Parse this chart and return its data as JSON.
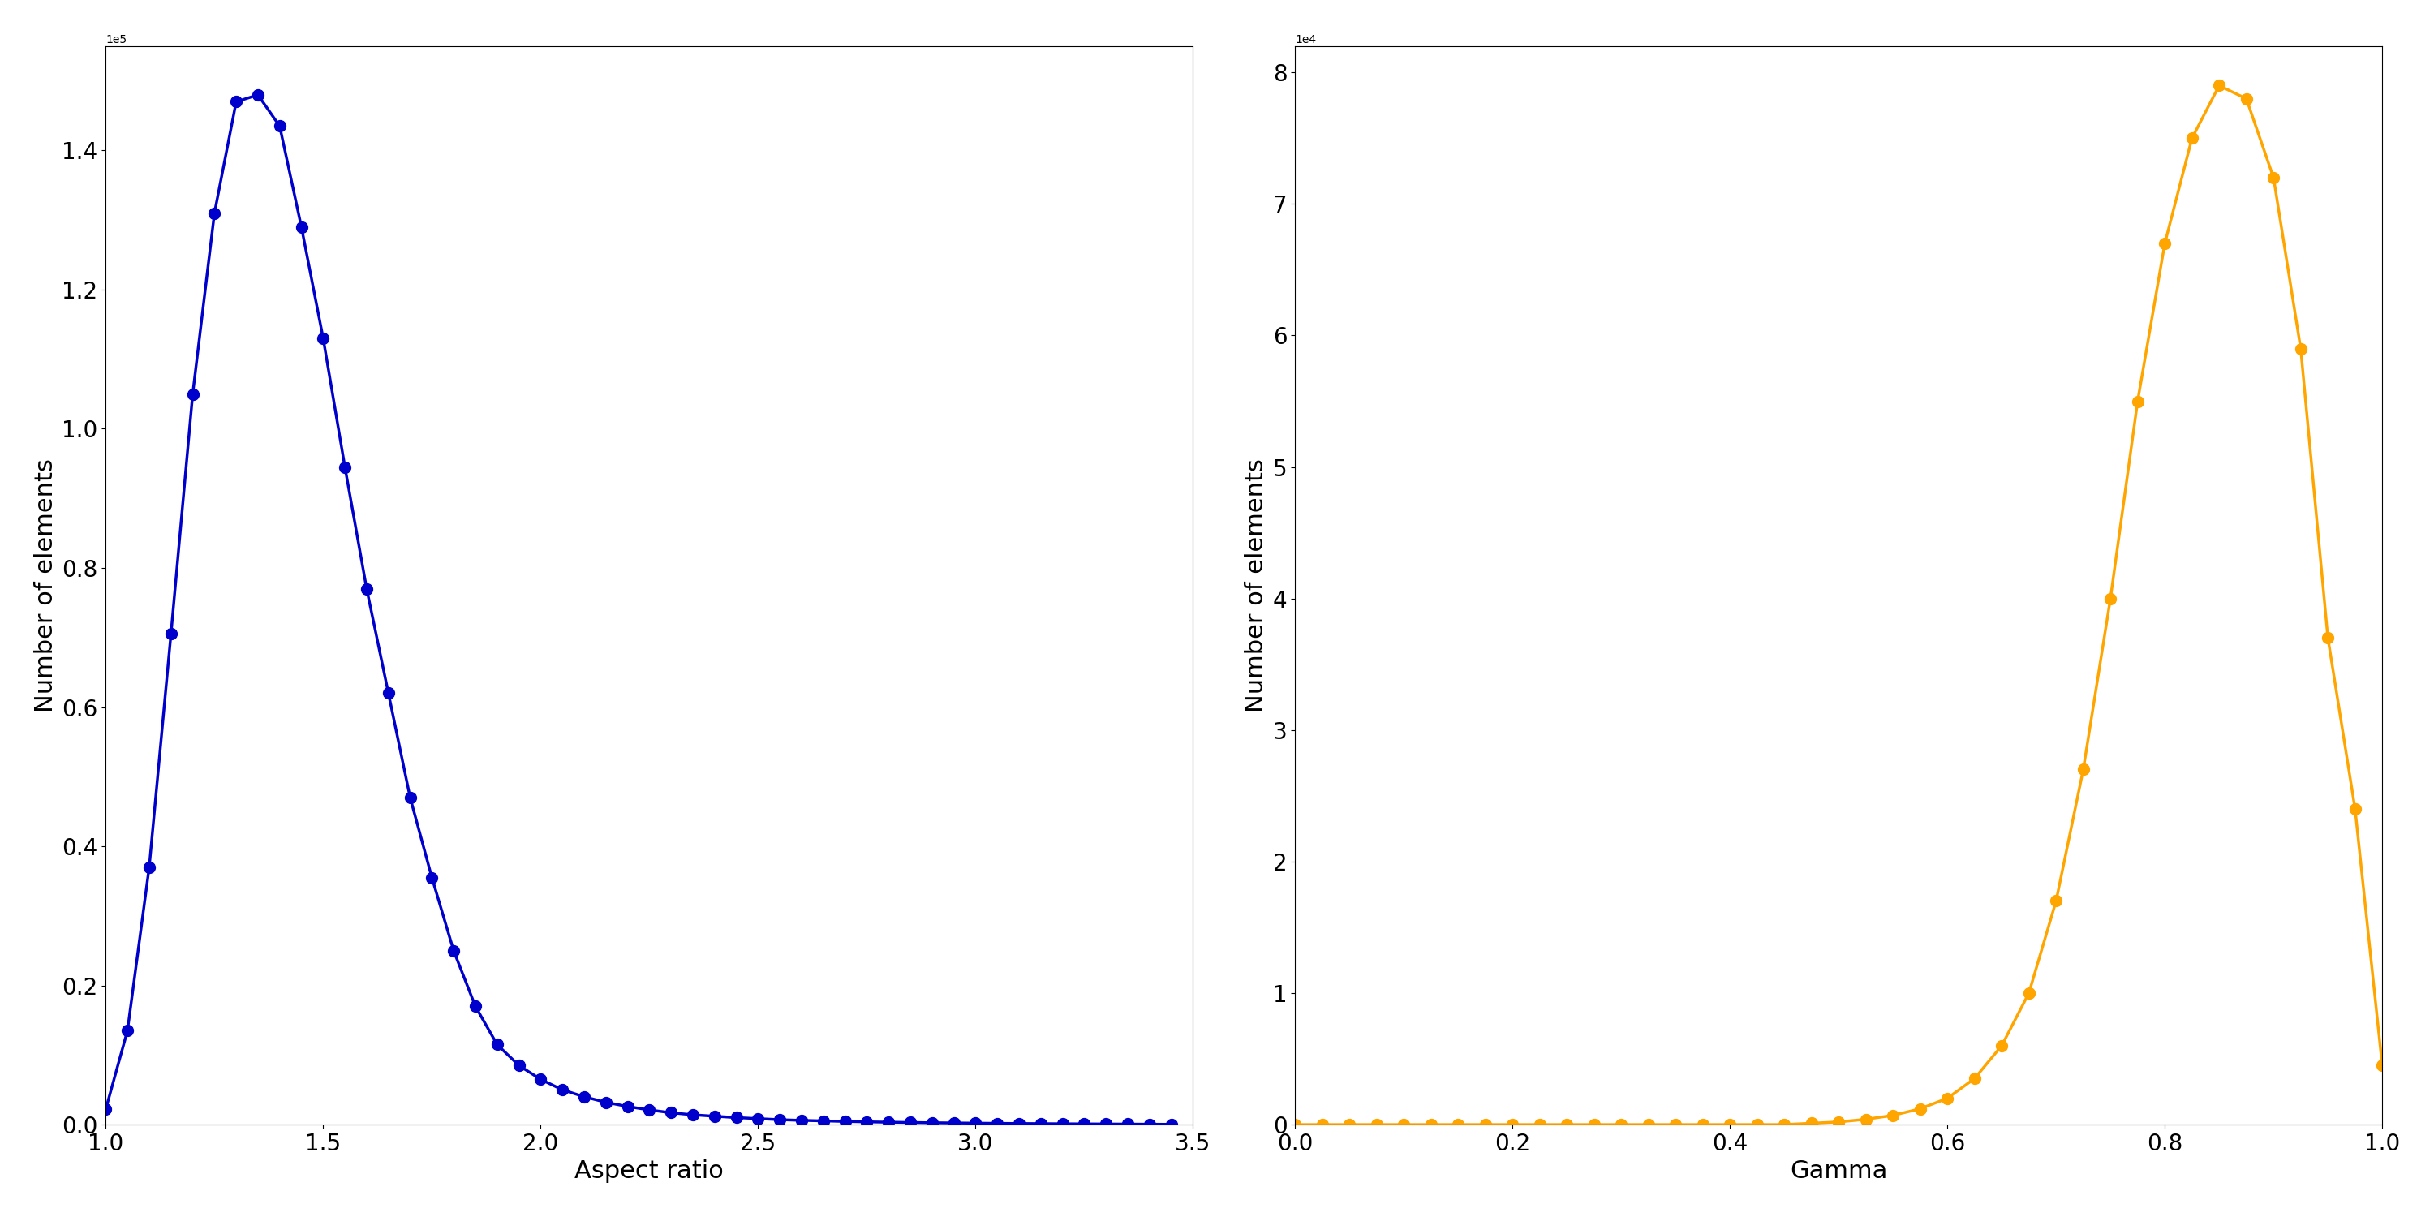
{
  "left": {
    "x": [
      1.0,
      1.05,
      1.1,
      1.15,
      1.2,
      1.25,
      1.3,
      1.35,
      1.4,
      1.45,
      1.5,
      1.55,
      1.6,
      1.65,
      1.7,
      1.75,
      1.8,
      1.85,
      1.9,
      1.95,
      2.0,
      2.05,
      2.1,
      2.15,
      2.2,
      2.25,
      2.3,
      2.35,
      2.4,
      2.45,
      2.5,
      2.55,
      2.6,
      2.65,
      2.7,
      2.75,
      2.8,
      2.85,
      2.9,
      2.95,
      3.0,
      3.05,
      3.1,
      3.15,
      3.2,
      3.25,
      3.3,
      3.35,
      3.4,
      3.45
    ],
    "y": [
      2200,
      13500,
      37000,
      70500,
      105000,
      131000,
      147000,
      148000,
      143500,
      129000,
      113000,
      94500,
      77000,
      62000,
      47000,
      35500,
      25000,
      17000,
      11500,
      8500,
      6500,
      5000,
      4000,
      3200,
      2600,
      2100,
      1700,
      1400,
      1200,
      1000,
      850,
      700,
      600,
      530,
      450,
      390,
      340,
      300,
      260,
      230,
      200,
      170,
      150,
      130,
      110,
      95,
      80,
      65,
      50,
      35
    ],
    "color": "#0000CC",
    "xlabel": "Aspect ratio",
    "ylabel": "Number of elements",
    "xlim": [
      1.0,
      3.5
    ],
    "ylim": [
      0,
      155000
    ]
  },
  "right": {
    "x": [
      0.0,
      0.025,
      0.05,
      0.075,
      0.1,
      0.125,
      0.15,
      0.175,
      0.2,
      0.225,
      0.25,
      0.275,
      0.3,
      0.325,
      0.35,
      0.375,
      0.4,
      0.425,
      0.45,
      0.475,
      0.5,
      0.525,
      0.55,
      0.575,
      0.6,
      0.625,
      0.65,
      0.675,
      0.7,
      0.725,
      0.75,
      0.775,
      0.8,
      0.825,
      0.85,
      0.875,
      0.9,
      0.925,
      0.95,
      0.975,
      1.0
    ],
    "y": [
      0,
      0,
      0,
      0,
      0,
      0,
      0,
      0,
      0,
      0,
      0,
      0,
      0,
      0,
      0,
      0,
      0,
      0,
      0,
      100,
      200,
      400,
      700,
      1200,
      2000,
      3500,
      6000,
      10000,
      17000,
      27000,
      40000,
      55000,
      67000,
      75000,
      79000,
      78000,
      72000,
      59000,
      37000,
      24000,
      4500
    ],
    "color": "#FFA500",
    "xlabel": "Gamma",
    "ylabel": "Number of elements",
    "xlim": [
      0.0,
      1.0
    ],
    "ylim": [
      0,
      82000
    ]
  }
}
